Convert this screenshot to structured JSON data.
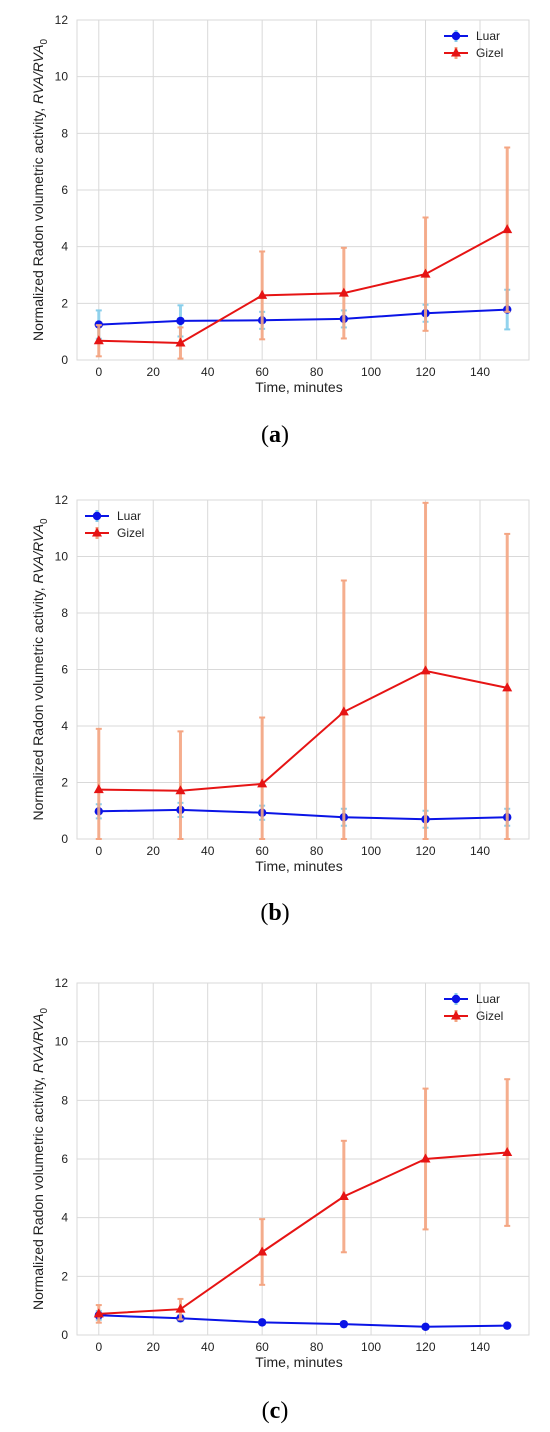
{
  "chart_data": [
    {
      "type": "line",
      "panel": "a",
      "caption_letter": "a",
      "x": [
        0,
        30,
        60,
        90,
        120,
        150
      ],
      "xlabel": "Time, minutes",
      "ylabel_prefix": "Normalized Radon volumetric activity, ",
      "ylabel_italic": "RVA/RVA",
      "ylabel_sub": "0",
      "xlim": [
        -8,
        158
      ],
      "ylim": [
        0,
        12
      ],
      "xticks": [
        0,
        20,
        40,
        60,
        80,
        100,
        120,
        140
      ],
      "yticks": [
        0,
        2,
        4,
        6,
        8,
        10,
        12
      ],
      "grid": true,
      "legend_position": "top-right",
      "series": [
        {
          "name": "Luar",
          "marker": "circle",
          "color": "#0a14e6",
          "errcolor": "#87ceeb",
          "values": [
            1.25,
            1.38,
            1.4,
            1.45,
            1.65,
            1.78
          ],
          "err": [
            0.5,
            0.55,
            0.3,
            0.3,
            0.3,
            0.7
          ]
        },
        {
          "name": "Gizel",
          "marker": "triangle",
          "color": "#e61414",
          "errcolor": "#f4a582",
          "values": [
            0.68,
            0.6,
            2.28,
            2.36,
            3.03,
            4.6
          ],
          "err": [
            0.55,
            0.55,
            1.55,
            1.6,
            2.0,
            2.9
          ]
        }
      ]
    },
    {
      "type": "line",
      "panel": "b",
      "caption_letter": "b",
      "x": [
        0,
        30,
        60,
        90,
        120,
        150
      ],
      "xlabel": "Time, minutes",
      "ylabel_prefix": "Normalized Radon volumetric activity, ",
      "ylabel_italic": "RVA/RVA",
      "ylabel_sub": "0",
      "xlim": [
        -8,
        158
      ],
      "ylim": [
        0,
        12
      ],
      "xticks": [
        0,
        20,
        40,
        60,
        80,
        100,
        120,
        140
      ],
      "yticks": [
        0,
        2,
        4,
        6,
        8,
        10,
        12
      ],
      "grid": true,
      "legend_position": "top-left",
      "series": [
        {
          "name": "Luar",
          "marker": "circle",
          "color": "#0a14e6",
          "errcolor": "#87ceeb",
          "values": [
            0.98,
            1.03,
            0.93,
            0.77,
            0.7,
            0.77
          ],
          "err": [
            0.25,
            0.25,
            0.25,
            0.3,
            0.3,
            0.3
          ]
        },
        {
          "name": "Gizel",
          "marker": "triangle",
          "color": "#e61414",
          "errcolor": "#f4a582",
          "values": [
            1.75,
            1.71,
            1.95,
            4.5,
            5.95,
            5.35
          ],
          "err": [
            2.15,
            2.1,
            2.35,
            4.65,
            5.95,
            5.45
          ]
        }
      ]
    },
    {
      "type": "line",
      "panel": "c",
      "caption_letter": "c",
      "x": [
        0,
        30,
        60,
        90,
        120,
        150
      ],
      "xlabel": "Time, minutes",
      "ylabel_prefix": "Normalized Radon volumetric activity, ",
      "ylabel_italic": "RVA/RVA",
      "ylabel_sub": "0",
      "xlim": [
        -8,
        158
      ],
      "ylim": [
        0,
        12
      ],
      "xticks": [
        0,
        20,
        40,
        60,
        80,
        100,
        120,
        140
      ],
      "yticks": [
        0,
        2,
        4,
        6,
        8,
        10,
        12
      ],
      "grid": true,
      "legend_position": "top-right",
      "series": [
        {
          "name": "Luar",
          "marker": "circle",
          "color": "#0a14e6",
          "errcolor": "#87ceeb",
          "values": [
            0.67,
            0.57,
            0.43,
            0.37,
            0.28,
            0.32
          ],
          "err": [
            0.15,
            0.1,
            0.08,
            0.08,
            0.06,
            0.06
          ]
        },
        {
          "name": "Gizel",
          "marker": "triangle",
          "color": "#e61414",
          "errcolor": "#f4a582",
          "values": [
            0.72,
            0.88,
            2.83,
            4.72,
            6.0,
            6.22
          ],
          "err": [
            0.3,
            0.35,
            1.12,
            1.9,
            2.4,
            2.5
          ]
        }
      ]
    }
  ]
}
